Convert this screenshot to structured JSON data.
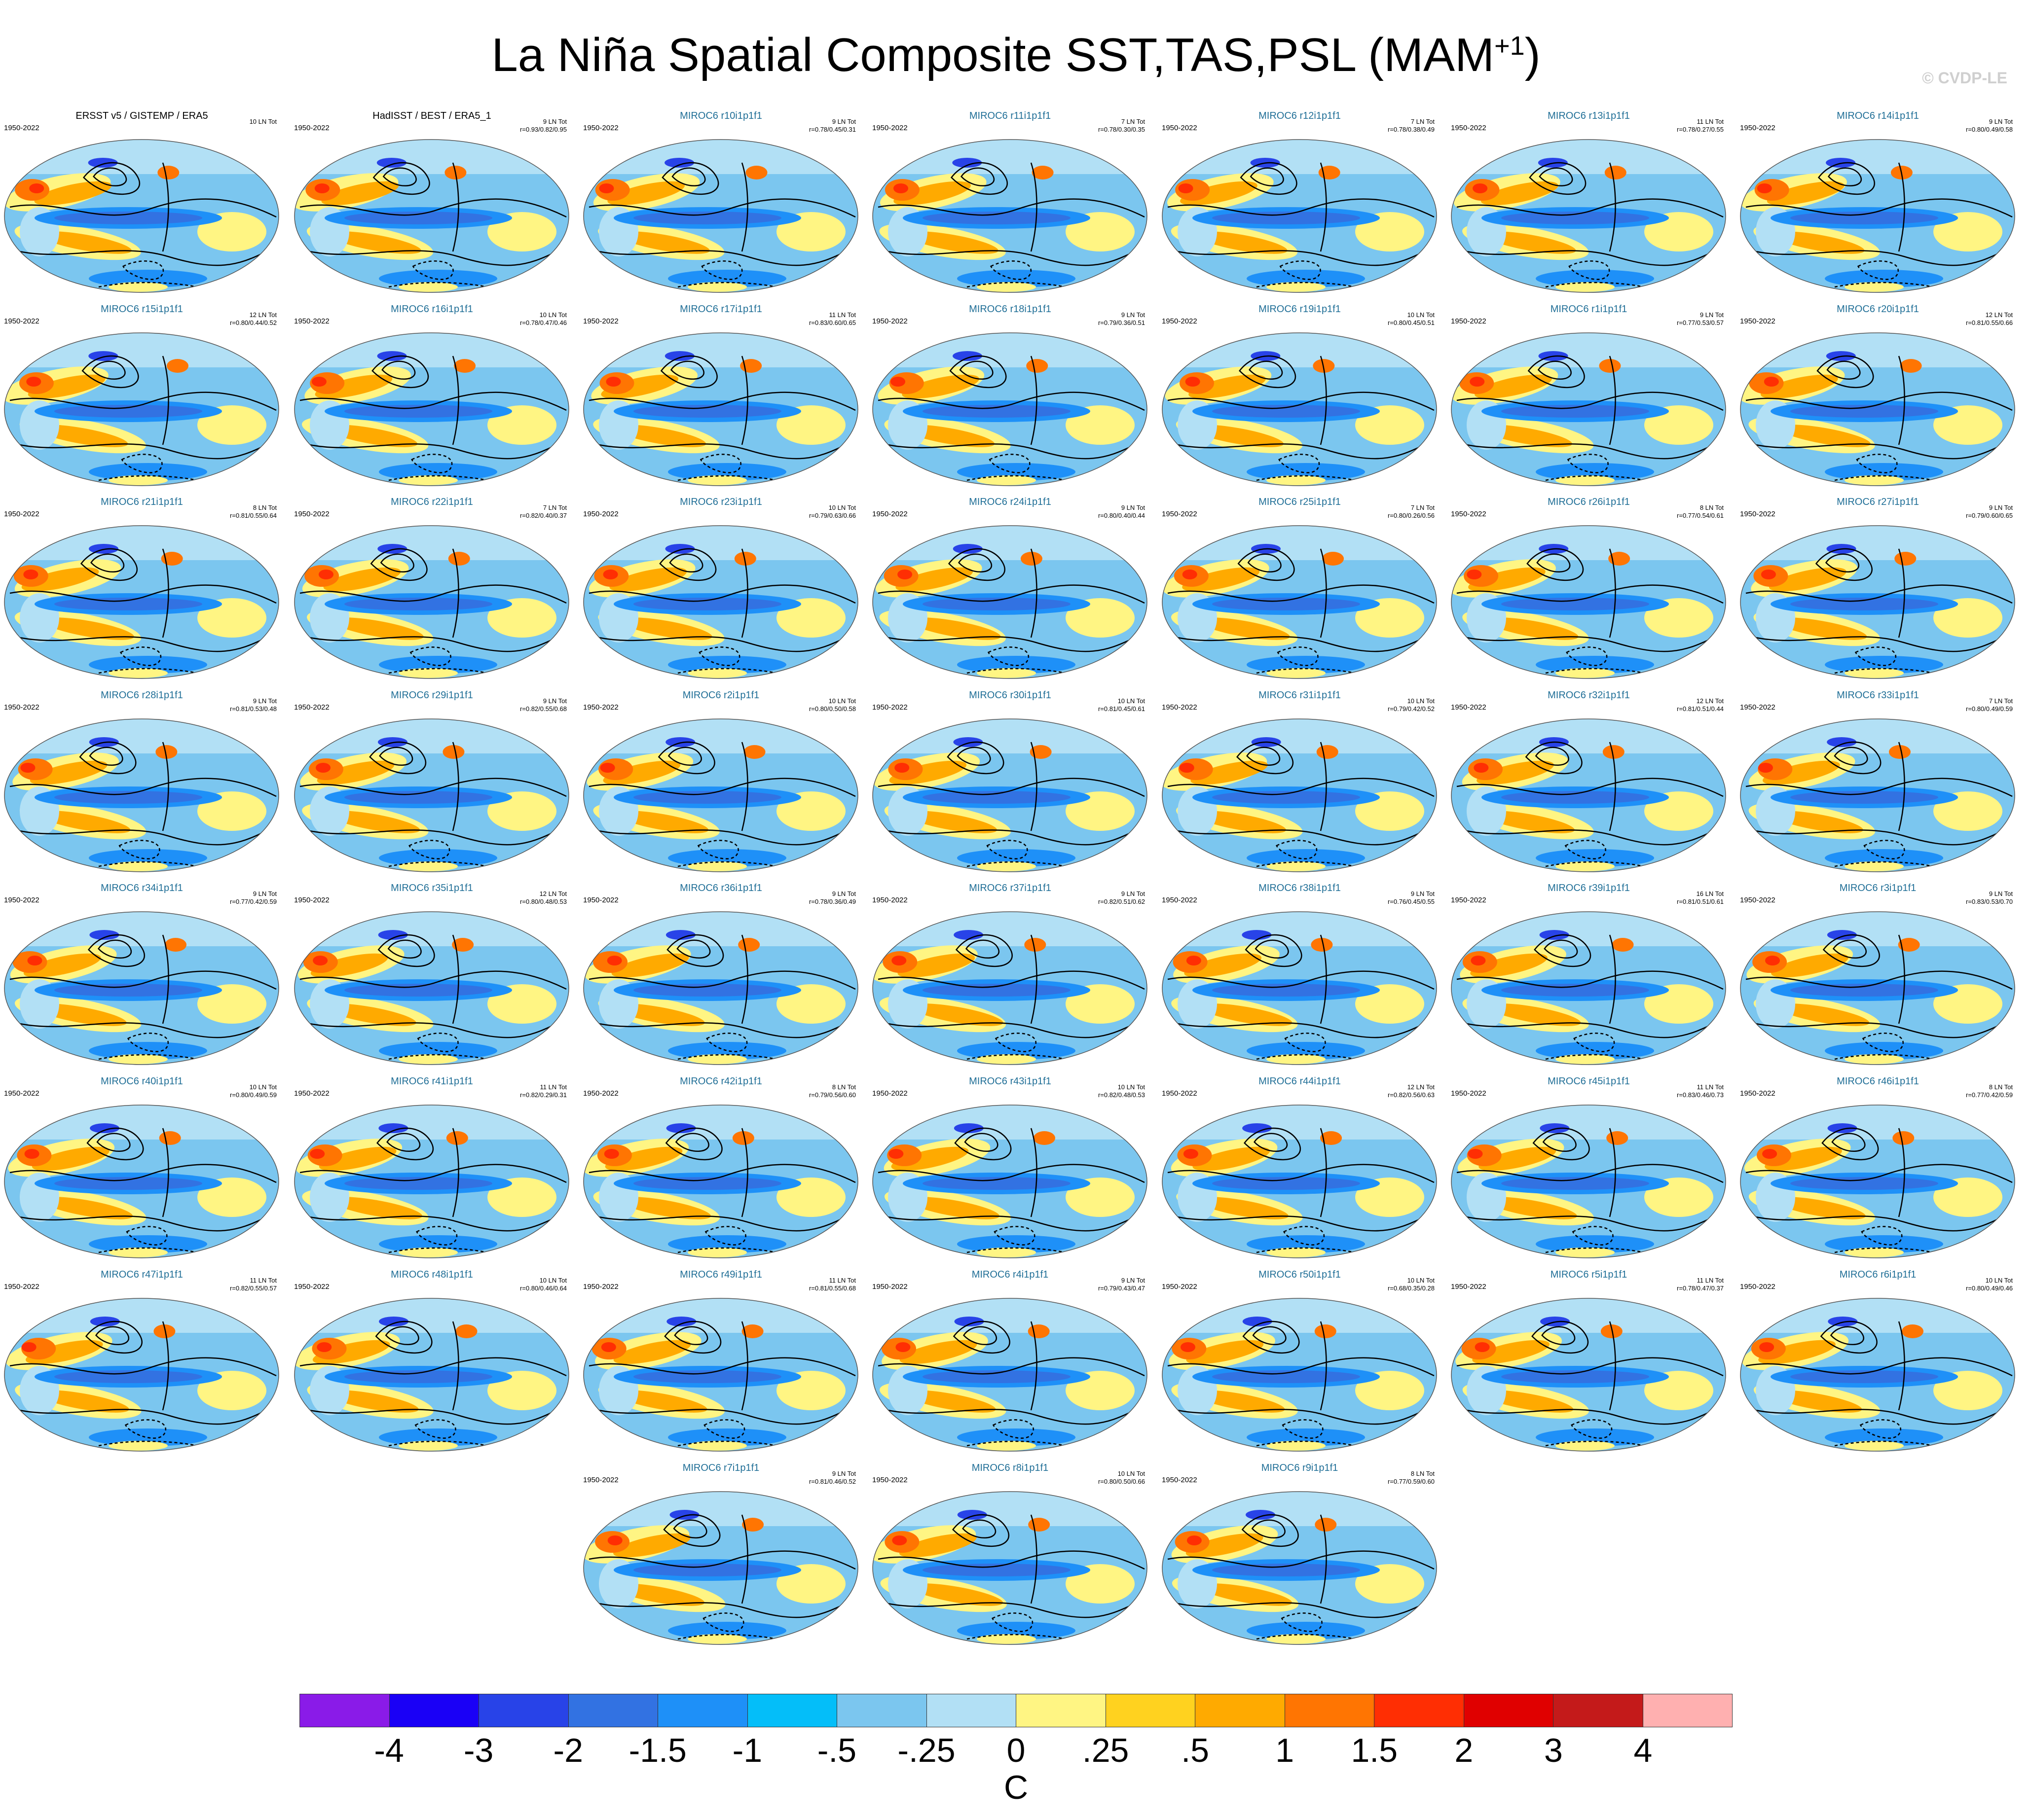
{
  "figure": {
    "title_main": "La Niña Spatial Composite SST,TAS,PSL (MAM",
    "title_sup": "+1",
    "title_end": ")",
    "watermark": "© CVDP-LE",
    "units_label": "C"
  },
  "chart_data": {
    "type": "heatmap",
    "title": "La Niña Spatial Composite SST,TAS,PSL (MAM+1)",
    "variables": [
      "SST",
      "TAS",
      "PSL"
    ],
    "season": "MAM+1",
    "period": "1950-2022",
    "units": "C",
    "colorbar": {
      "colors": [
        "#8a1be8",
        "#1a00f6",
        "#2843e8",
        "#3272e2",
        "#1e90f8",
        "#04bef9",
        "#7bc6ef",
        "#b2e0f5",
        "#fff583",
        "#ffd21f",
        "#ffaa00",
        "#ff7502",
        "#ff2e03",
        "#e00000",
        "#c41a1a",
        "#ffb0b0"
      ],
      "tick_labels": [
        "-4",
        "-3",
        "-2",
        "-1.5",
        "-1",
        "-.5",
        "-.25",
        "0",
        ".25",
        ".5",
        "1",
        "1.5",
        "2",
        "3",
        "4"
      ]
    },
    "panels": [
      {
        "name": "ERSST v5 / GISTEMP / ERA5",
        "period": "1950-2022",
        "count": "10 LN Tot",
        "corr": "",
        "obs": true
      },
      {
        "name": "HadISST / BEST / ERA5_1",
        "period": "1950-2022",
        "count": "9 LN Tot",
        "corr": "r=0.93/0.82/0.95",
        "obs": true
      },
      {
        "name": "MIROC6 r10i1p1f1",
        "period": "1950-2022",
        "count": "9 LN Tot",
        "corr": "r=0.78/0.45/0.31"
      },
      {
        "name": "MIROC6 r11i1p1f1",
        "period": "1950-2022",
        "count": "7 LN Tot",
        "corr": "r=0.78/0.30/0.35"
      },
      {
        "name": "MIROC6 r12i1p1f1",
        "period": "1950-2022",
        "count": "7 LN Tot",
        "corr": "r=0.78/0.38/0.49"
      },
      {
        "name": "MIROC6 r13i1p1f1",
        "period": "1950-2022",
        "count": "11 LN Tot",
        "corr": "r=0.78/0.27/0.55"
      },
      {
        "name": "MIROC6 r14i1p1f1",
        "period": "1950-2022",
        "count": "9 LN Tot",
        "corr": "r=0.80/0.49/0.58"
      },
      {
        "name": "MIROC6 r15i1p1f1",
        "period": "1950-2022",
        "count": "12 LN Tot",
        "corr": "r=0.80/0.44/0.52"
      },
      {
        "name": "MIROC6 r16i1p1f1",
        "period": "1950-2022",
        "count": "10 LN Tot",
        "corr": "r=0.78/0.47/0.46"
      },
      {
        "name": "MIROC6 r17i1p1f1",
        "period": "1950-2022",
        "count": "11 LN Tot",
        "corr": "r=0.83/0.60/0.65"
      },
      {
        "name": "MIROC6 r18i1p1f1",
        "period": "1950-2022",
        "count": "9 LN Tot",
        "corr": "r=0.79/0.36/0.51"
      },
      {
        "name": "MIROC6 r19i1p1f1",
        "period": "1950-2022",
        "count": "10 LN Tot",
        "corr": "r=0.80/0.45/0.51"
      },
      {
        "name": "MIROC6 r1i1p1f1",
        "period": "1950-2022",
        "count": "9 LN Tot",
        "corr": "r=0.77/0.53/0.57"
      },
      {
        "name": "MIROC6 r20i1p1f1",
        "period": "1950-2022",
        "count": "12 LN Tot",
        "corr": "r=0.81/0.55/0.66"
      },
      {
        "name": "MIROC6 r21i1p1f1",
        "period": "1950-2022",
        "count": "8 LN Tot",
        "corr": "r=0.81/0.55/0.64"
      },
      {
        "name": "MIROC6 r22i1p1f1",
        "period": "1950-2022",
        "count": "7 LN Tot",
        "corr": "r=0.82/0.40/0.37"
      },
      {
        "name": "MIROC6 r23i1p1f1",
        "period": "1950-2022",
        "count": "10 LN Tot",
        "corr": "r=0.79/0.63/0.66"
      },
      {
        "name": "MIROC6 r24i1p1f1",
        "period": "1950-2022",
        "count": "9 LN Tot",
        "corr": "r=0.80/0.40/0.44"
      },
      {
        "name": "MIROC6 r25i1p1f1",
        "period": "1950-2022",
        "count": "7 LN Tot",
        "corr": "r=0.80/0.26/0.56"
      },
      {
        "name": "MIROC6 r26i1p1f1",
        "period": "1950-2022",
        "count": "8 LN Tot",
        "corr": "r=0.77/0.54/0.61"
      },
      {
        "name": "MIROC6 r27i1p1f1",
        "period": "1950-2022",
        "count": "9 LN Tot",
        "corr": "r=0.79/0.60/0.65"
      },
      {
        "name": "MIROC6 r28i1p1f1",
        "period": "1950-2022",
        "count": "9 LN Tot",
        "corr": "r=0.81/0.53/0.48"
      },
      {
        "name": "MIROC6 r29i1p1f1",
        "period": "1950-2022",
        "count": "9 LN Tot",
        "corr": "r=0.82/0.55/0.68"
      },
      {
        "name": "MIROC6 r2i1p1f1",
        "period": "1950-2022",
        "count": "10 LN Tot",
        "corr": "r=0.80/0.50/0.58"
      },
      {
        "name": "MIROC6 r30i1p1f1",
        "period": "1950-2022",
        "count": "10 LN Tot",
        "corr": "r=0.81/0.45/0.61"
      },
      {
        "name": "MIROC6 r31i1p1f1",
        "period": "1950-2022",
        "count": "10 LN Tot",
        "corr": "r=0.79/0.42/0.52"
      },
      {
        "name": "MIROC6 r32i1p1f1",
        "period": "1950-2022",
        "count": "12 LN Tot",
        "corr": "r=0.81/0.51/0.44"
      },
      {
        "name": "MIROC6 r33i1p1f1",
        "period": "1950-2022",
        "count": "7 LN Tot",
        "corr": "r=0.80/0.49/0.59"
      },
      {
        "name": "MIROC6 r34i1p1f1",
        "period": "1950-2022",
        "count": "9 LN Tot",
        "corr": "r=0.77/0.42/0.59"
      },
      {
        "name": "MIROC6 r35i1p1f1",
        "period": "1950-2022",
        "count": "12 LN Tot",
        "corr": "r=0.80/0.48/0.53"
      },
      {
        "name": "MIROC6 r36i1p1f1",
        "period": "1950-2022",
        "count": "9 LN Tot",
        "corr": "r=0.78/0.36/0.49"
      },
      {
        "name": "MIROC6 r37i1p1f1",
        "period": "1950-2022",
        "count": "9 LN Tot",
        "corr": "r=0.82/0.51/0.62"
      },
      {
        "name": "MIROC6 r38i1p1f1",
        "period": "1950-2022",
        "count": "9 LN Tot",
        "corr": "r=0.76/0.45/0.55"
      },
      {
        "name": "MIROC6 r39i1p1f1",
        "period": "1950-2022",
        "count": "16 LN Tot",
        "corr": "r=0.81/0.51/0.61"
      },
      {
        "name": "MIROC6 r3i1p1f1",
        "period": "1950-2022",
        "count": "9 LN Tot",
        "corr": "r=0.83/0.53/0.70"
      },
      {
        "name": "MIROC6 r40i1p1f1",
        "period": "1950-2022",
        "count": "10 LN Tot",
        "corr": "r=0.80/0.49/0.59"
      },
      {
        "name": "MIROC6 r41i1p1f1",
        "period": "1950-2022",
        "count": "11 LN Tot",
        "corr": "r=0.82/0.29/0.31"
      },
      {
        "name": "MIROC6 r42i1p1f1",
        "period": "1950-2022",
        "count": "8 LN Tot",
        "corr": "r=0.79/0.56/0.60"
      },
      {
        "name": "MIROC6 r43i1p1f1",
        "period": "1950-2022",
        "count": "10 LN Tot",
        "corr": "r=0.82/0.48/0.53"
      },
      {
        "name": "MIROC6 r44i1p1f1",
        "period": "1950-2022",
        "count": "12 LN Tot",
        "corr": "r=0.82/0.56/0.63"
      },
      {
        "name": "MIROC6 r45i1p1f1",
        "period": "1950-2022",
        "count": "11 LN Tot",
        "corr": "r=0.83/0.46/0.73"
      },
      {
        "name": "MIROC6 r46i1p1f1",
        "period": "1950-2022",
        "count": "8 LN Tot",
        "corr": "r=0.77/0.42/0.59"
      },
      {
        "name": "MIROC6 r47i1p1f1",
        "period": "1950-2022",
        "count": "11 LN Tot",
        "corr": "r=0.82/0.55/0.57"
      },
      {
        "name": "MIROC6 r48i1p1f1",
        "period": "1950-2022",
        "count": "10 LN Tot",
        "corr": "r=0.80/0.46/0.64"
      },
      {
        "name": "MIROC6 r49i1p1f1",
        "period": "1950-2022",
        "count": "11 LN Tot",
        "corr": "r=0.81/0.55/0.68"
      },
      {
        "name": "MIROC6 r4i1p1f1",
        "period": "1950-2022",
        "count": "9 LN Tot",
        "corr": "r=0.79/0.43/0.47"
      },
      {
        "name": "MIROC6 r50i1p1f1",
        "period": "1950-2022",
        "count": "10 LN Tot",
        "corr": "r=0.68/0.35/0.28"
      },
      {
        "name": "MIROC6 r5i1p1f1",
        "period": "1950-2022",
        "count": "11 LN Tot",
        "corr": "r=0.78/0.47/0.37"
      },
      {
        "name": "MIROC6 r6i1p1f1",
        "period": "1950-2022",
        "count": "10 LN Tot",
        "corr": "r=0.80/0.49/0.46"
      },
      {
        "name": "MIROC6 r7i1p1f1",
        "period": "1950-2022",
        "count": "9 LN Tot",
        "corr": "r=0.81/0.46/0.52"
      },
      {
        "name": "MIROC6 r8i1p1f1",
        "period": "1950-2022",
        "count": "10 LN Tot",
        "corr": "r=0.80/0.50/0.66"
      },
      {
        "name": "MIROC6 r9i1p1f1",
        "period": "1950-2022",
        "count": "8 LN Tot",
        "corr": "r=0.77/0.59/0.60"
      }
    ]
  }
}
